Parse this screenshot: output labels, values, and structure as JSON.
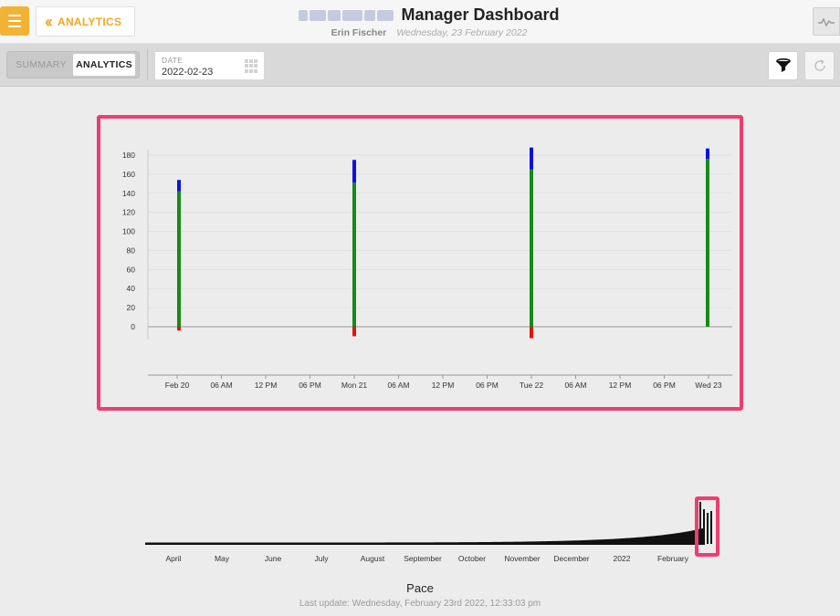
{
  "header": {
    "back_label": "ANALYTICS",
    "title": "Manager Dashboard",
    "user": "Erin Fischer",
    "date": "Wednesday, 23 February 2022"
  },
  "toolbar": {
    "tabs": [
      {
        "label": "SUMMARY",
        "active": false
      },
      {
        "label": "ANALYTICS",
        "active": true
      }
    ],
    "date_label": "DATE",
    "date_value": "2022-02-23"
  },
  "colors": {
    "accent": "#f2b233",
    "highlight": "#ef3d73",
    "series_blue": "#1010e6",
    "series_green": "#178a17",
    "series_red": "#e61010"
  },
  "chart_data": {
    "type": "bar",
    "stacked": true,
    "categories": [
      "Feb 20",
      "Mon 21",
      "Tue 22",
      "Wed 23"
    ],
    "series": [
      {
        "values": [
          142,
          151,
          165,
          176
        ],
        "color": "#178a17"
      },
      {
        "values": [
          12,
          24,
          23,
          11
        ],
        "color": "#1010e6"
      },
      {
        "values": [
          -4,
          -10,
          -12,
          0
        ],
        "color": "#e61010"
      }
    ],
    "x_ticks": [
      "Feb 20",
      "06 AM",
      "12 PM",
      "06 PM",
      "Mon 21",
      "06 AM",
      "12 PM",
      "06 PM",
      "Tue 22",
      "06 AM",
      "12 PM",
      "06 PM",
      "Wed 23"
    ],
    "y_ticks": [
      0,
      20,
      40,
      60,
      80,
      100,
      120,
      140,
      160,
      180
    ],
    "ylim": [
      -10,
      180
    ],
    "grid": true
  },
  "navigator": {
    "labels": [
      "April",
      "May",
      "June",
      "July",
      "August",
      "September",
      "October",
      "November",
      "December",
      "2022",
      "February"
    ]
  },
  "footer": {
    "title": "Pace",
    "last_update": "Last update: Wednesday, February 23rd 2022, 12:33:03 pm"
  }
}
